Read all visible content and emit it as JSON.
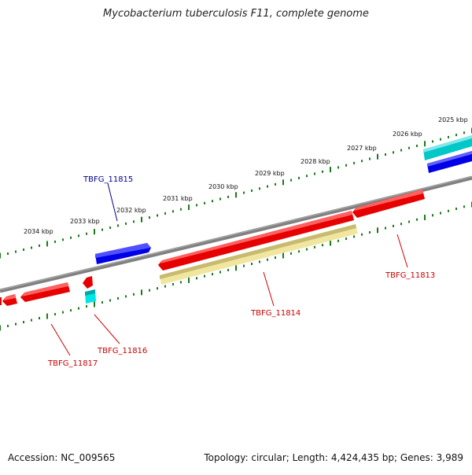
{
  "title": "Mycobacterium tuberculosis F11, complete genome",
  "footer": {
    "accession": "Accession: NC_009565",
    "summary": "Topology: circular; Length: 4,424,435 bp; Genes: 3,989"
  },
  "ruler_labels": [
    "2025 kbp",
    "2026 kbp",
    "2027 kbp",
    "2028 kbp",
    "2029 kbp",
    "2030 kbp",
    "2031 kbp",
    "2032 kbp",
    "2033 kbp",
    "2034 kbp"
  ],
  "gene_labels": {
    "tbfg_11813": "TBFG_11813",
    "tbfg_11814": "TBFG_11814",
    "tbfg_11815": "TBFG_11815",
    "tbfg_11816": "TBFG_11816",
    "tbfg_11817": "TBFG_11817"
  },
  "colors": {
    "cds_red": "#e60000",
    "cds_blue": "#0000e6",
    "cds_cyan": "#00c8c8",
    "pale_yellow": "#f0e6a0",
    "backbone": "#808080",
    "ticks": "#1a7a1a",
    "label_red": "#cc0000",
    "label_blue": "#00008b"
  }
}
